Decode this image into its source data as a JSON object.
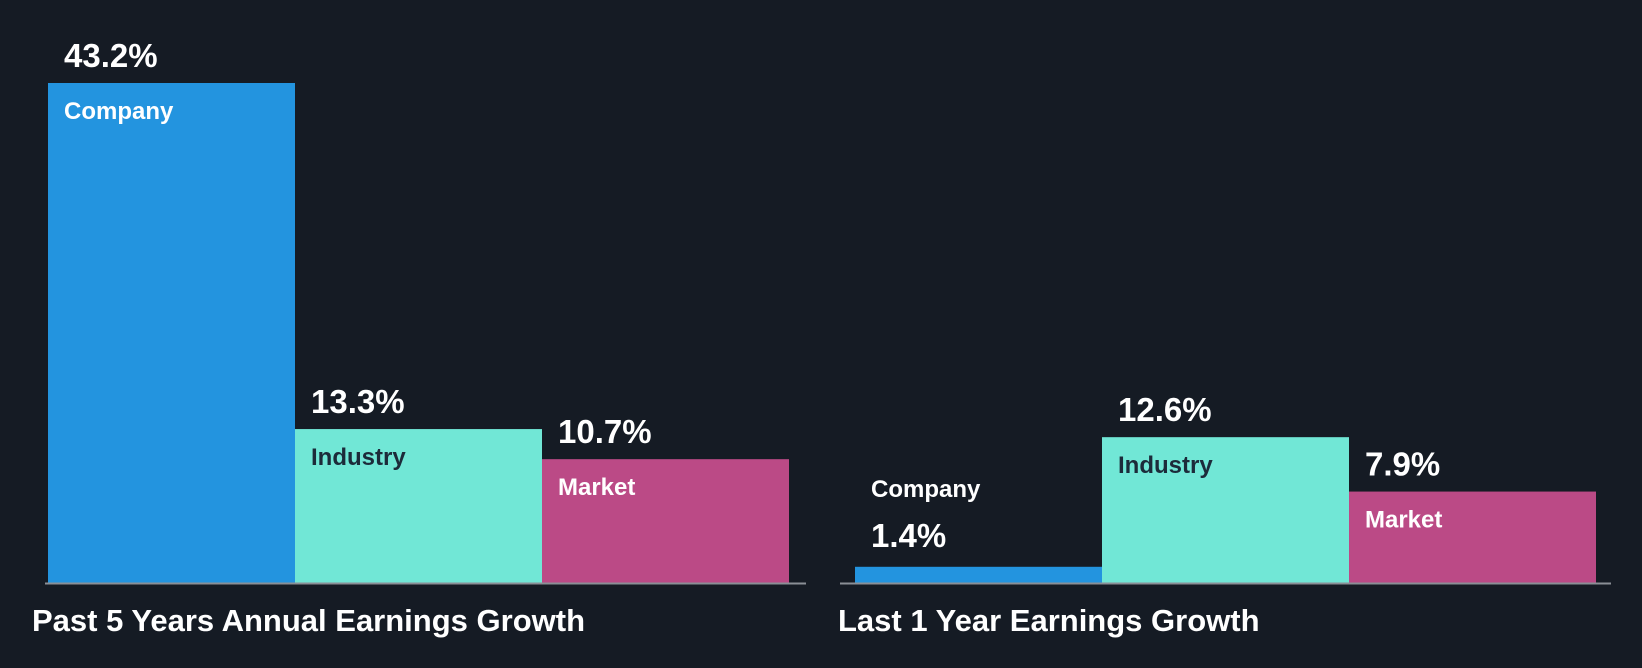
{
  "colors": {
    "background": "#151b24",
    "company": "#2394df",
    "industry": "#71e7d6",
    "market": "#bb4a86",
    "baseline": "#8a8f96",
    "value_text": "#ffffff",
    "label_text_on_dark": "#ffffff",
    "label_text_on_light": "#1c2b3a"
  },
  "chart_data": [
    {
      "type": "bar",
      "title": "Past 5 Years Annual Earnings Growth",
      "categories": [
        "Company",
        "Industry",
        "Market"
      ],
      "values": [
        43.2,
        13.3,
        10.7
      ],
      "value_labels": [
        "43.2%",
        "13.3%",
        "10.7%"
      ],
      "ylim": [
        0,
        43.2
      ],
      "grid": false,
      "legend": "none"
    },
    {
      "type": "bar",
      "title": "Last 1 Year Earnings Growth",
      "categories": [
        "Company",
        "Industry",
        "Market"
      ],
      "values": [
        1.4,
        12.6,
        7.9
      ],
      "value_labels": [
        "1.4%",
        "12.6%",
        "7.9%"
      ],
      "ylim": [
        0,
        43.2
      ],
      "grid": false,
      "legend": "none"
    }
  ]
}
